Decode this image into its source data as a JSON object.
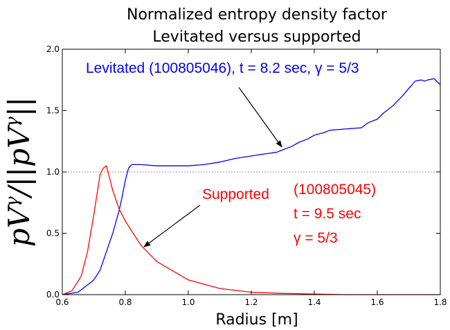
{
  "chart_data": {
    "type": "line",
    "title_line1": "Normalized entropy density factor",
    "title_line2": "Levitated versus supported",
    "xlabel": "Radius [m]",
    "ylabel": "pV^γ/||pV^γ||",
    "xlim": [
      0.6,
      1.8
    ],
    "ylim": [
      0.0,
      2.0
    ],
    "xticks": [
      "0.6",
      "0.8",
      "1.0",
      "1.2",
      "1.4",
      "1.6",
      "1.8"
    ],
    "yticks": [
      "0.0",
      "0.5",
      "1.0",
      "1.5",
      "2.0"
    ],
    "reference_line": {
      "y": 1.0,
      "color": "#6666dd",
      "style": "dotted"
    },
    "series": [
      {
        "name": "Levitated",
        "color": "#0000ff",
        "x": [
          0.6,
          0.65,
          0.7,
          0.72,
          0.74,
          0.76,
          0.78,
          0.79,
          0.8,
          0.81,
          0.82,
          0.85,
          0.9,
          1.0,
          1.05,
          1.1,
          1.15,
          1.2,
          1.25,
          1.28,
          1.3,
          1.33,
          1.35,
          1.38,
          1.4,
          1.43,
          1.45,
          1.5,
          1.55,
          1.57,
          1.6,
          1.62,
          1.65,
          1.68,
          1.7,
          1.72,
          1.74,
          1.75,
          1.76,
          1.78,
          1.8
        ],
        "y": [
          0.0,
          0.02,
          0.12,
          0.2,
          0.35,
          0.5,
          0.68,
          0.8,
          0.93,
          1.03,
          1.06,
          1.06,
          1.05,
          1.05,
          1.06,
          1.08,
          1.11,
          1.13,
          1.15,
          1.16,
          1.18,
          1.21,
          1.24,
          1.27,
          1.3,
          1.32,
          1.34,
          1.35,
          1.36,
          1.4,
          1.43,
          1.48,
          1.54,
          1.62,
          1.68,
          1.74,
          1.75,
          1.74,
          1.75,
          1.76,
          1.71
        ]
      },
      {
        "name": "Supported",
        "color": "#ff0000",
        "x": [
          0.6,
          0.63,
          0.66,
          0.68,
          0.7,
          0.72,
          0.73,
          0.74,
          0.75,
          0.76,
          0.78,
          0.8,
          0.85,
          0.9,
          1.0,
          1.1,
          1.2,
          1.3,
          1.4,
          1.5,
          1.6,
          1.7,
          1.8
        ],
        "y": [
          0.0,
          0.03,
          0.15,
          0.35,
          0.65,
          0.98,
          1.03,
          1.05,
          0.95,
          0.85,
          0.7,
          0.6,
          0.4,
          0.27,
          0.12,
          0.05,
          0.02,
          0.01,
          0.005,
          0.0,
          0.0,
          0.0,
          0.0
        ]
      }
    ],
    "annotations": {
      "levitated": {
        "text": "Levitated (100805046), t = 8.2 sec, γ = 5/3",
        "color": "#0000ff"
      },
      "supported_1": {
        "text": "Supported",
        "color": "#ff0000"
      },
      "supported_2": {
        "text": "(100805045)",
        "color": "#ff0000"
      },
      "supported_3": {
        "text": "t = 9.5 sec",
        "color": "#ff0000"
      },
      "supported_4": {
        "text": "γ = 5/3",
        "color": "#ff0000"
      }
    }
  }
}
